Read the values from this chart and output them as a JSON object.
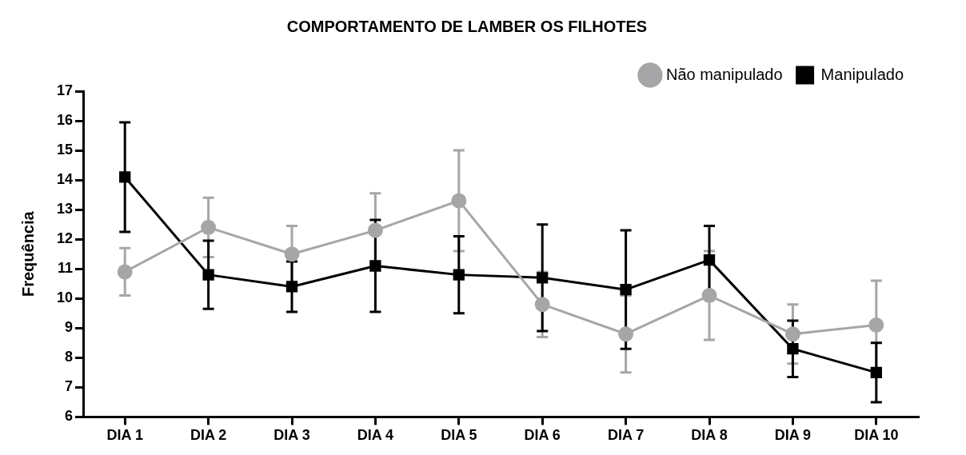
{
  "chart_data": {
    "type": "line",
    "title": "COMPORTAMENTO DE LAMBER OS FILHOTES",
    "ylabel": "Frequência",
    "categories": [
      "DIA 1",
      "DIA 2",
      "DIA 3",
      "DIA 4",
      "DIA 5",
      "DIA 6",
      "DIA 7",
      "DIA 8",
      "DIA 9",
      "DIA 10"
    ],
    "series": [
      {
        "name": "Não manipulado",
        "color": "#a6a6a8",
        "marker": "circle",
        "values": [
          10.9,
          12.4,
          11.5,
          12.3,
          13.3,
          9.8,
          8.8,
          10.1,
          8.8,
          9.1
        ],
        "errors": [
          0.8,
          1.0,
          0.95,
          1.25,
          1.7,
          1.1,
          1.3,
          1.5,
          1.0,
          1.5
        ]
      },
      {
        "name": "Manipulado",
        "color": "#000000",
        "marker": "square",
        "values": [
          14.1,
          10.8,
          10.4,
          11.1,
          10.8,
          10.7,
          10.3,
          11.3,
          8.3,
          7.5
        ],
        "errors": [
          1.85,
          1.15,
          0.85,
          1.55,
          1.3,
          1.8,
          2.0,
          1.15,
          0.95,
          1.0
        ]
      }
    ],
    "ylim": [
      6,
      17
    ],
    "yticks": [
      6,
      7,
      8,
      9,
      10,
      11,
      12,
      13,
      14,
      15,
      16,
      17
    ],
    "grid": false,
    "legend": "top right",
    "line_style": "solid"
  }
}
